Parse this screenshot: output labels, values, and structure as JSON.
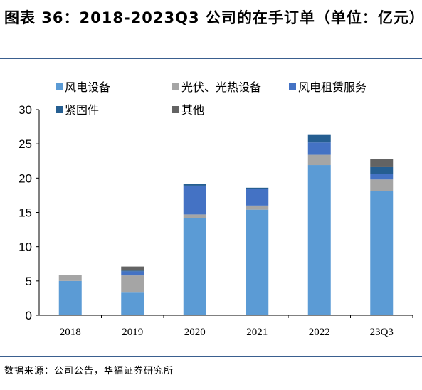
{
  "header": {
    "title": "图表 36：2018-2023Q3 公司的在手订单（单位：亿元）"
  },
  "footer": {
    "source": "数据来源：公司公告，华福证券研究所"
  },
  "chart_data": {
    "type": "bar",
    "stacked": true,
    "categories": [
      "2018",
      "2019",
      "2020",
      "2021",
      "2022",
      "23Q3"
    ],
    "ylim": [
      0,
      30
    ],
    "yticks": [
      0,
      5,
      10,
      15,
      20,
      25,
      30
    ],
    "grid": false,
    "legend_position": "top",
    "series": [
      {
        "name": "风电设备",
        "color": "#5b9bd5",
        "values": [
          5.0,
          3.3,
          14.2,
          15.4,
          21.9,
          18.1
        ]
      },
      {
        "name": "光伏、光热设备",
        "color": "#a5a5a5",
        "values": [
          0.9,
          2.5,
          0.5,
          0.6,
          1.5,
          1.7
        ]
      },
      {
        "name": "风电租赁服务",
        "color": "#4472c4",
        "values": [
          0.0,
          0.6,
          4.2,
          2.4,
          1.8,
          0.8
        ]
      },
      {
        "name": "紧固件",
        "color": "#255e91",
        "values": [
          0.0,
          0.1,
          0.2,
          0.2,
          1.2,
          1.1
        ]
      },
      {
        "name": "其他",
        "color": "#636363",
        "values": [
          0.0,
          0.6,
          0.0,
          0.0,
          0.0,
          1.1
        ]
      }
    ]
  }
}
